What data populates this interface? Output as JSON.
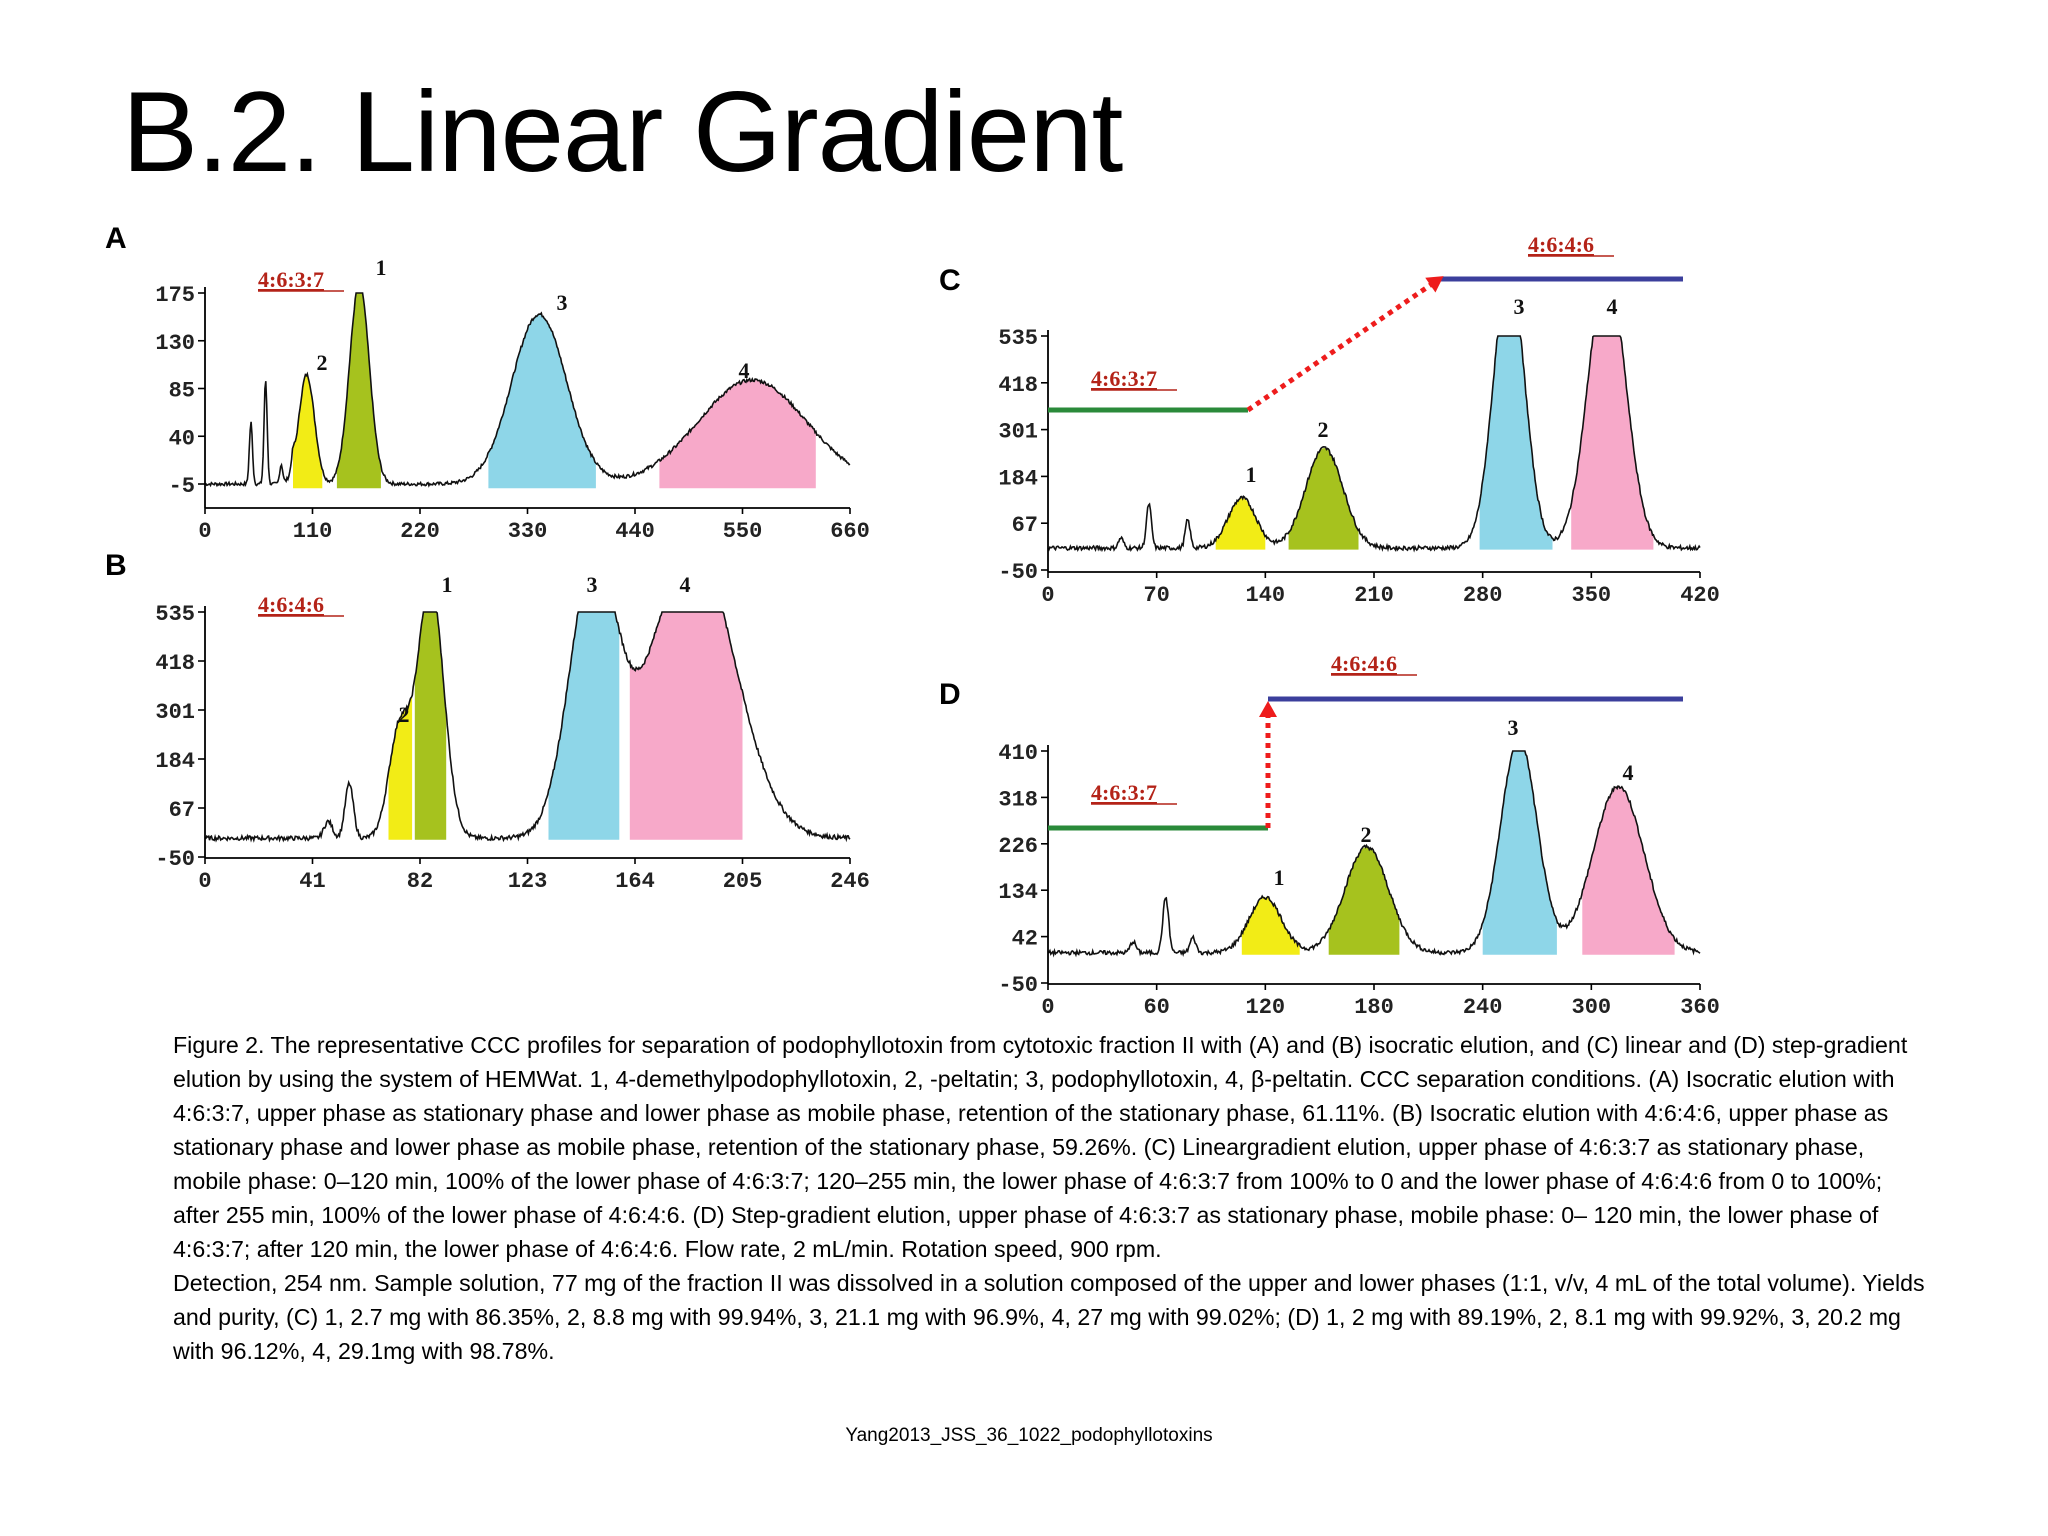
{
  "slide": {
    "title": "B.2. Linear Gradient",
    "caption_paragraphs": [
      "Figure 2. The representative CCC profiles for separation of podophyllotoxin from cytotoxic fraction II with (A) and (B) isocratic elution, and (C) linear and (D) step-gradient elution by using the system of HEMWat. 1, 4-demethylpodophyllotoxin, 2, -peltatin; 3, podophyllotoxin, 4, β-peltatin. CCC separation conditions. (A) Isocratic elution with 4:6:3:7, upper phase as stationary phase and lower phase as mobile phase, retention of the stationary phase, 61.11%. (B) Isocratic elution with 4:6:4:6, upper phase as stationary phase and lower phase as mobile phase, retention of the stationary phase, 59.26%. (C) Lineargradient elution, upper phase of 4:6:3:7 as stationary phase, mobile phase: 0–120 min, 100% of the lower phase of 4:6:3:7; 120–255 min, the lower phase of 4:6:3:7 from 100% to 0 and the lower phase of 4:6:4:6 from 0 to 100%; after 255 min, 100% of the lower phase of 4:6:4:6. (D) Step-gradient elution, upper phase of 4:6:3:7 as stationary phase, mobile phase: 0– 120 min, the lower phase of 4:6:3:7; after 120 min, the lower phase of 4:6:4:6. Flow rate, 2 mL/min. Rotation speed, 900 rpm.",
      "Detection, 254 nm. Sample solution, 77 mg of the fraction II was dissolved in a solution composed of the upper and lower phases (1:1, v/v, 4 mL of the total volume). Yields and purity, (C) 1, 2.7 mg with 86.35%, 2, 8.8 mg with 99.94%, 3, 21.1 mg with 96.9%, 4, 27 mg with 99.02%; (D) 1, 2 mg with 89.19%, 2, 8.1 mg with 99.92%, 3, 20.2 mg with 96.12%, 4, 29.1mg with 98.78%."
    ],
    "source": "Yang2013_JSS_36_1022_podophyllotoxins"
  },
  "colors": {
    "peak1": "#f2ec16",
    "peak2": "#a6c21e",
    "peak3": "#8ed6e8",
    "peak4": "#f7a9c9",
    "solvent1": "#2a8a3a",
    "solvent2": "#3b3f9c",
    "transition": "#ee1c1c",
    "solvent_label": "#b42318"
  },
  "chart_data": [
    {
      "panel": "A",
      "type": "line",
      "xticks": [
        "0",
        "110",
        "220",
        "330",
        "440",
        "550",
        "660"
      ],
      "xlim": [
        0,
        660
      ],
      "yticks": [
        "175",
        "130",
        "85",
        "40",
        "-5"
      ],
      "ylim": [
        -20,
        205
      ],
      "solvent_labels": [
        {
          "text": "4:6:3:7"
        }
      ],
      "peak_labels": [
        "1",
        "2",
        "3",
        "4"
      ],
      "minor_peaks": [
        {
          "x": 47,
          "h": 58
        },
        {
          "x": 62,
          "h": 98
        },
        {
          "x": 78,
          "h": 18
        },
        {
          "x": 90,
          "h": 12
        }
      ],
      "peaks": [
        {
          "label": "1",
          "x": 104,
          "h": 103,
          "w": 8,
          "fill": [
            90,
            120
          ]
        },
        {
          "label": "2",
          "x": 158,
          "h": 190,
          "w": 10,
          "fill": [
            135,
            180
          ]
        },
        {
          "label": "3",
          "x": 342,
          "h": 160,
          "w": 28,
          "fill": [
            290,
            400
          ]
        },
        {
          "label": "4",
          "x": 560,
          "h": 98,
          "w": 55,
          "fill": [
            465,
            625
          ]
        }
      ]
    },
    {
      "panel": "B",
      "type": "line",
      "xticks": [
        "0",
        "41",
        "82",
        "123",
        "164",
        "205",
        "246"
      ],
      "xlim": [
        0,
        246
      ],
      "yticks": [
        "535",
        "418",
        "301",
        "184",
        "67",
        "-50"
      ],
      "ylim": [
        -50,
        570
      ],
      "solvent_labels": [
        {
          "text": "4:6:4:6"
        }
      ],
      "peak_labels": [
        "1",
        "2",
        "3",
        "4"
      ],
      "minor_peaks": [
        {
          "x": 47,
          "h": 40
        },
        {
          "x": 55,
          "h": 130
        }
      ],
      "peaks": [
        {
          "label": "1",
          "x": 74,
          "h": 250,
          "w": 4,
          "fill": [
            70,
            79
          ]
        },
        {
          "label": "2",
          "x": 86,
          "h": 612,
          "w": 5,
          "fill": [
            80,
            92
          ]
        },
        {
          "label": "3",
          "x": 148,
          "h": 640,
          "w": 9,
          "fill": [
            131,
            158
          ]
        },
        {
          "label": "4",
          "x": 186,
          "h": 700,
          "w": 16,
          "fill": [
            162,
            205
          ]
        }
      ]
    },
    {
      "panel": "C",
      "type": "line",
      "xticks": [
        "0",
        "70",
        "140",
        "210",
        "280",
        "350",
        "420"
      ],
      "xlim": [
        0,
        420
      ],
      "yticks": [
        "535",
        "418",
        "301",
        "184",
        "67",
        "-50"
      ],
      "ylim": [
        -50,
        590
      ],
      "solvent_labels": [
        {
          "text": "4:6:3:7"
        },
        {
          "text": "4:6:4:6"
        }
      ],
      "peak_labels": [
        "1",
        "2",
        "3",
        "4"
      ],
      "minor_peaks": [
        {
          "x": 47,
          "h": 25
        },
        {
          "x": 65,
          "h": 110
        },
        {
          "x": 90,
          "h": 70
        }
      ],
      "peaks": [
        {
          "label": "1",
          "x": 125,
          "h": 125,
          "w": 9,
          "fill": [
            108,
            140
          ]
        },
        {
          "label": "2",
          "x": 178,
          "h": 250,
          "w": 12,
          "fill": [
            155,
            200
          ]
        },
        {
          "label": "3",
          "x": 297,
          "h": 700,
          "w": 10,
          "fill": [
            278,
            325
          ]
        },
        {
          "label": "4",
          "x": 360,
          "h": 700,
          "w": 12,
          "fill": [
            337,
            390
          ]
        }
      ]
    },
    {
      "panel": "D",
      "type": "line",
      "xticks": [
        "0",
        "60",
        "120",
        "180",
        "240",
        "300",
        "360"
      ],
      "xlim": [
        0,
        360
      ],
      "yticks": [
        "410",
        "318",
        "226",
        "134",
        "42",
        "-50"
      ],
      "ylim": [
        -50,
        455
      ],
      "solvent_labels": [
        {
          "text": "4:6:3:7"
        },
        {
          "text": "4:6:4:6"
        }
      ],
      "peak_labels": [
        "1",
        "2",
        "3",
        "4"
      ],
      "minor_peaks": [
        {
          "x": 47,
          "h": 22
        },
        {
          "x": 65,
          "h": 110
        },
        {
          "x": 80,
          "h": 30
        }
      ],
      "peaks": [
        {
          "label": "1",
          "x": 120,
          "h": 110,
          "w": 9,
          "fill": [
            107,
            139
          ]
        },
        {
          "label": "2",
          "x": 176,
          "h": 210,
          "w": 12,
          "fill": [
            155,
            194
          ]
        },
        {
          "label": "3",
          "x": 260,
          "h": 425,
          "w": 10,
          "fill": [
            240,
            281
          ]
        },
        {
          "label": "4",
          "x": 315,
          "h": 330,
          "w": 14,
          "fill": [
            295,
            346
          ]
        }
      ]
    }
  ]
}
